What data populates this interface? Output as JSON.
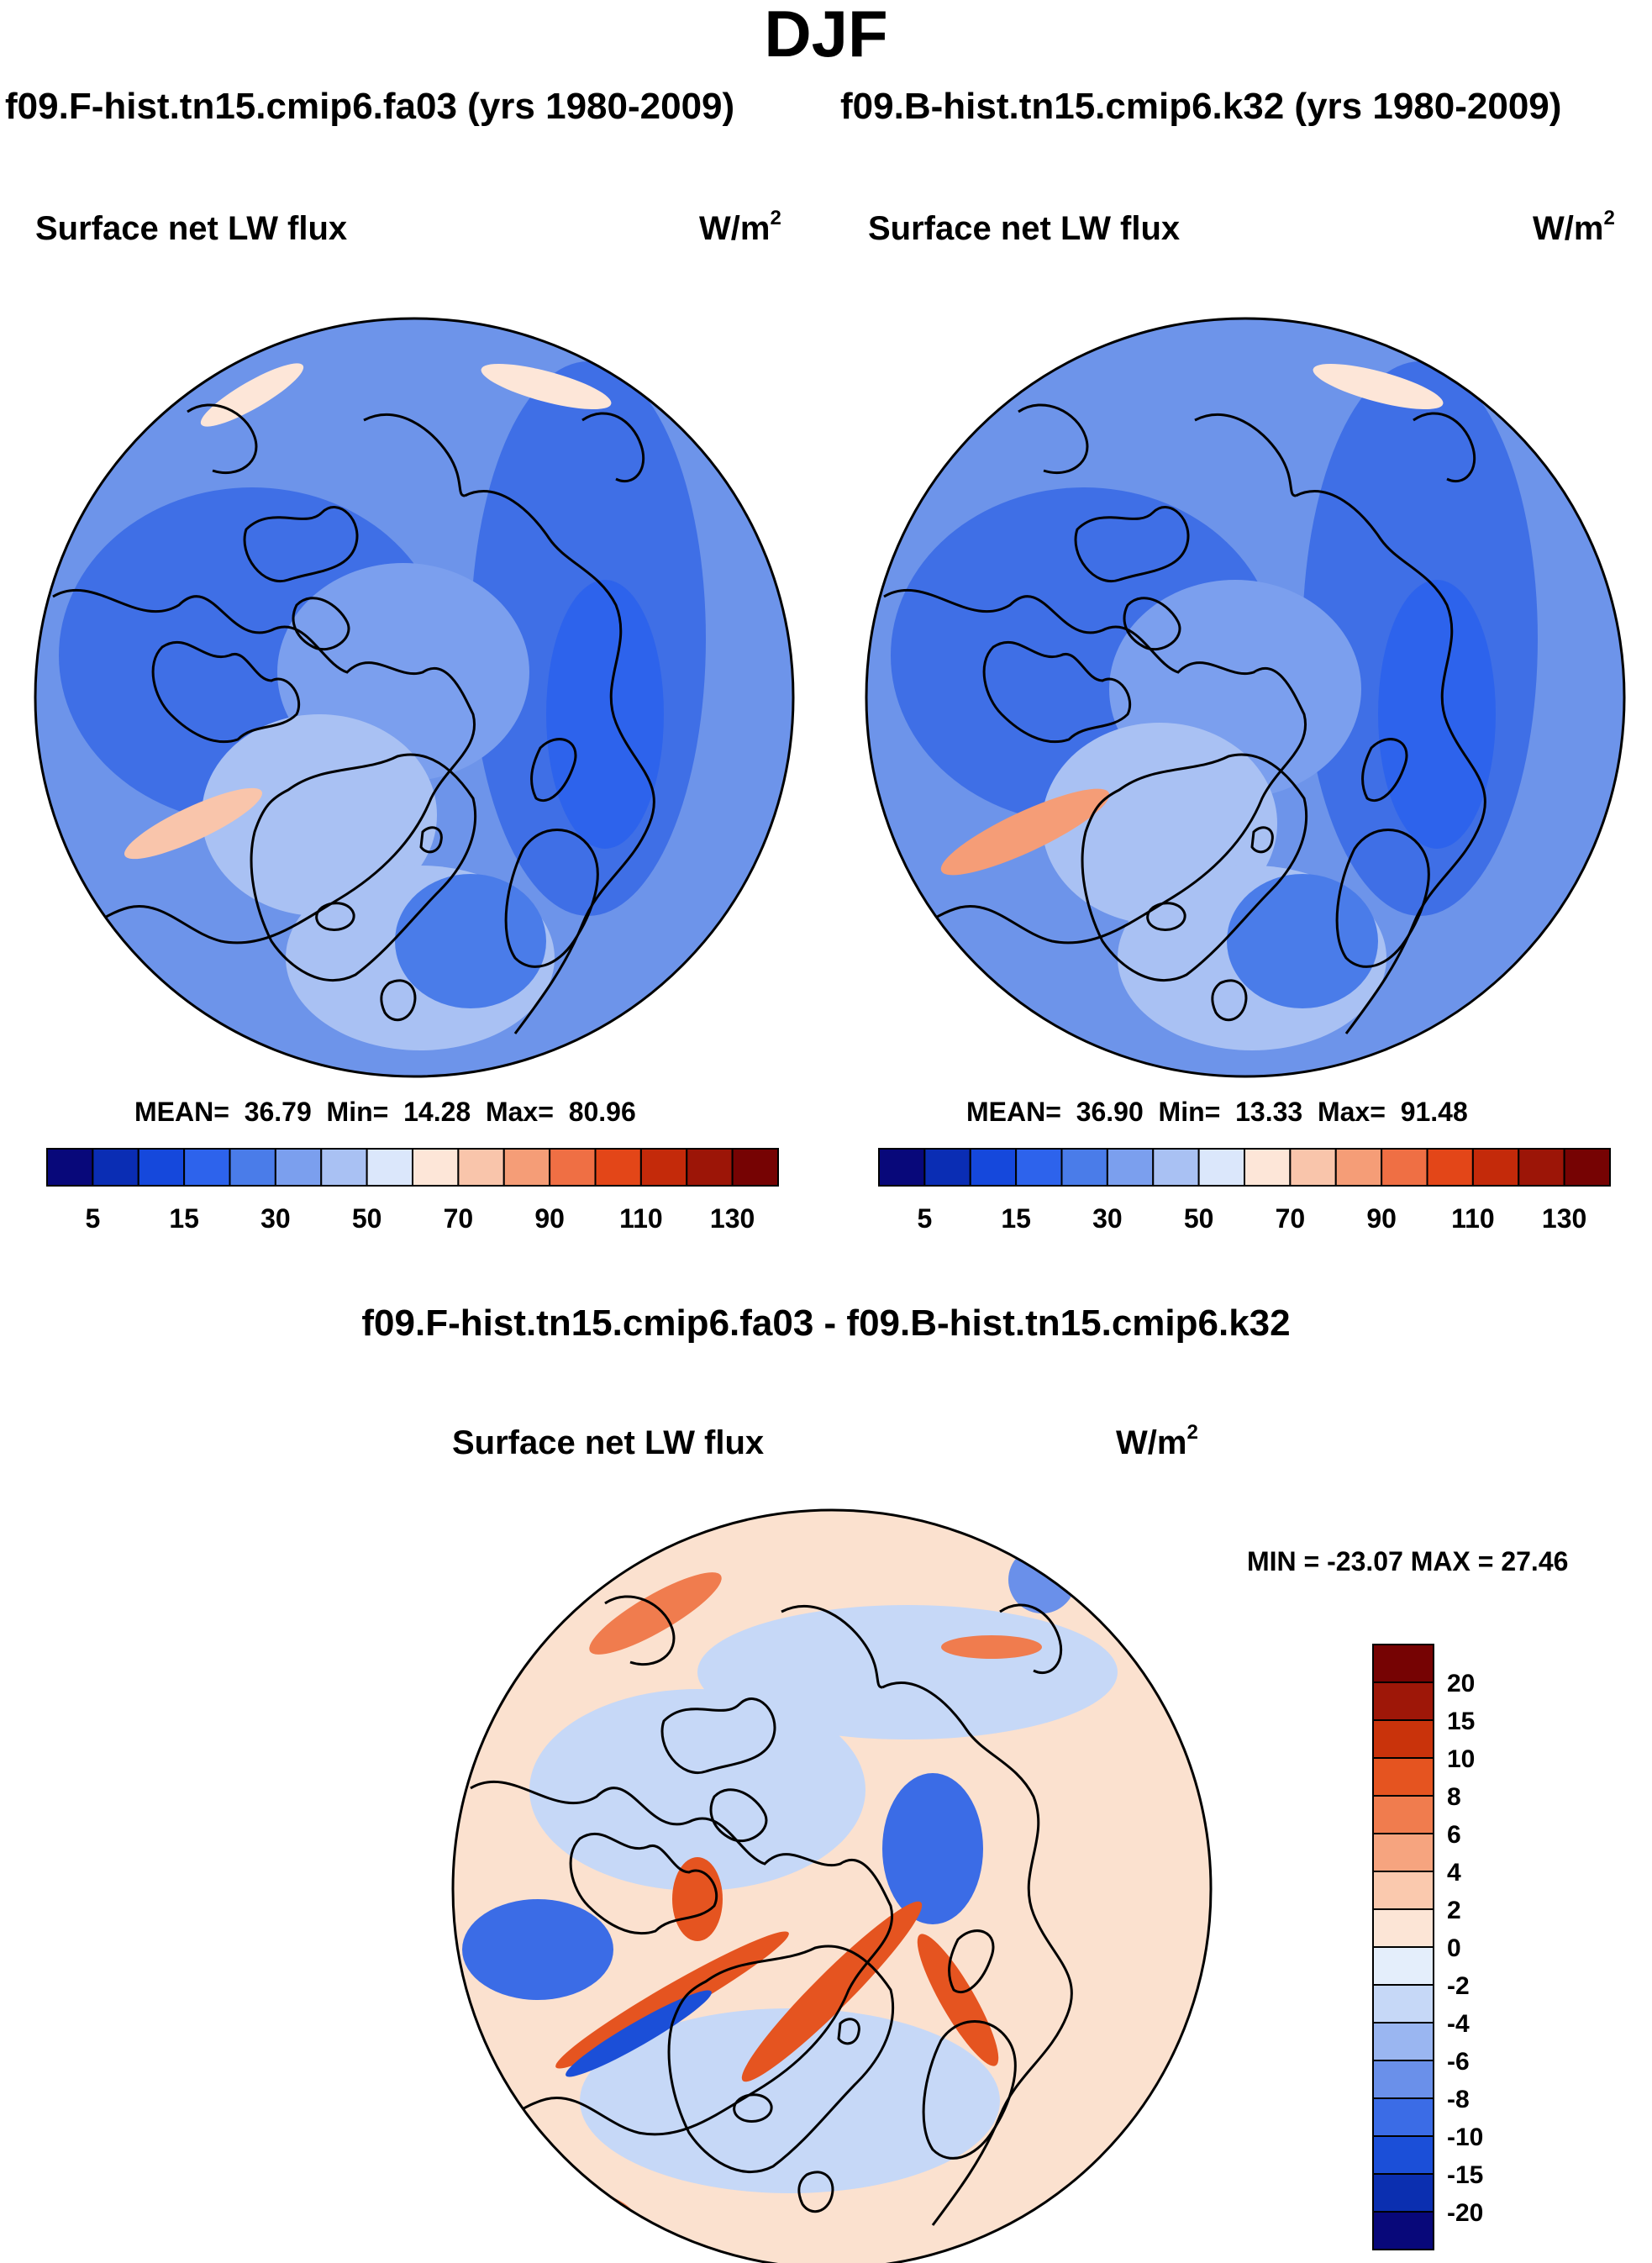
{
  "title": "DJF",
  "experiments": {
    "left": "f09.F-hist.tn15.cmip6.fa03 (yrs 1980-2009)",
    "right": "f09.B-hist.tn15.cmip6.k32 (yrs 1980-2009)"
  },
  "diff_title": "f09.F-hist.tn15.cmip6.fa03 - f09.B-hist.tn15.cmip6.k32",
  "units_base": "W/m",
  "units_exp": "2",
  "colors": {
    "abs_palette": [
      "#08087a",
      "#0a2db4",
      "#1548dc",
      "#2d63ec",
      "#4a7ce9",
      "#7b9fee",
      "#a9c1f3",
      "#dbe7fb",
      "#fde6d8",
      "#f9c5ab",
      "#f59d77",
      "#ef6f44",
      "#e34618",
      "#c42a0a",
      "#9c1507",
      "#760303"
    ],
    "diff_palette": [
      "#08087a",
      "#0b2fb0",
      "#1b4fd8",
      "#3b6ce6",
      "#6a90ea",
      "#9ab6f1",
      "#c6d8f7",
      "#e4eefb",
      "#fce5d6",
      "#fac9ae",
      "#f6a47f",
      "#f07c4e",
      "#e55420",
      "#c9330b",
      "#9e1708",
      "#760303"
    ],
    "ocean_base": "#6d94ea",
    "ocean_diff": "#fbe1cf",
    "coast": "#000000"
  },
  "chart_data": [
    {
      "type": "heatmap",
      "projection": "north polar stereographic",
      "panel": "left",
      "title": "Surface net LW flux",
      "units": "W/m2",
      "stats": {
        "mean_label": "MEAN=",
        "mean": "36.79",
        "min_label": "Min=",
        "min": "14.28",
        "max_label": "Max=",
        "max": "80.96"
      },
      "colorbar": {
        "orientation": "horizontal",
        "levels": [
          0,
          5,
          10,
          15,
          20,
          30,
          40,
          50,
          60,
          70,
          80,
          90,
          100,
          110,
          120,
          130
        ],
        "tick_labels": [
          "5",
          "15",
          "30",
          "50",
          "70",
          "90",
          "110",
          "130"
        ]
      }
    },
    {
      "type": "heatmap",
      "projection": "north polar stereographic",
      "panel": "right",
      "title": "Surface net LW flux",
      "units": "W/m2",
      "stats": {
        "mean_label": "MEAN=",
        "mean": "36.90",
        "min_label": "Min=",
        "min": "13.33",
        "max_label": "Max=",
        "max": "91.48"
      },
      "colorbar": {
        "orientation": "horizontal",
        "levels": [
          0,
          5,
          10,
          15,
          20,
          30,
          40,
          50,
          60,
          70,
          80,
          90,
          100,
          110,
          120,
          130
        ],
        "tick_labels": [
          "5",
          "15",
          "30",
          "50",
          "70",
          "90",
          "110",
          "130"
        ]
      }
    },
    {
      "type": "heatmap",
      "projection": "north polar stereographic",
      "panel": "difference",
      "title": "Surface net LW flux",
      "units": "W/m2",
      "stats": {
        "text": "MIN = -23.07 MAX =  27.46",
        "min": -23.07,
        "max": 27.46
      },
      "colorbar": {
        "orientation": "vertical",
        "tick_labels": [
          "20",
          "15",
          "10",
          "8",
          "6",
          "4",
          "2",
          "0",
          "-2",
          "-4",
          "-6",
          "-8",
          "-10",
          "-15",
          "-20"
        ]
      }
    }
  ]
}
